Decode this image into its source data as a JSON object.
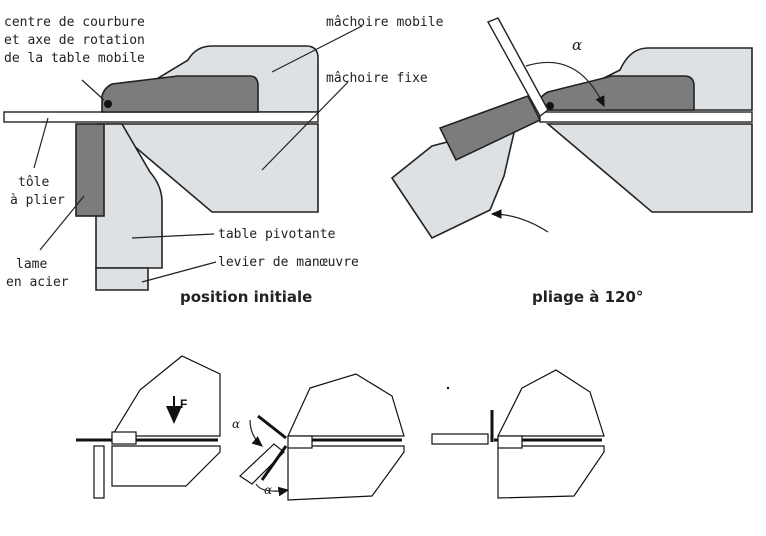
{
  "top_left": {
    "labels": {
      "centre_l1": "centre de courbure",
      "centre_l2": "et axe de rotation",
      "centre_l3": "de la table mobile",
      "tole_l1": "tôle",
      "tole_l2": "à plier",
      "lame_l1": "lame",
      "lame_l2": "en acier",
      "machoire_mobile": "mâchoire mobile",
      "machoire_fixe": "mâchoire fixe",
      "table_pivotante": "table pivotante",
      "levier": "levier de manœuvre"
    },
    "caption": "position initiale"
  },
  "top_right": {
    "alpha": "α",
    "caption": "pliage à 120°"
  },
  "bottom": {
    "force_label": "F",
    "alpha_upper": "α",
    "alpha_lower": "α"
  }
}
